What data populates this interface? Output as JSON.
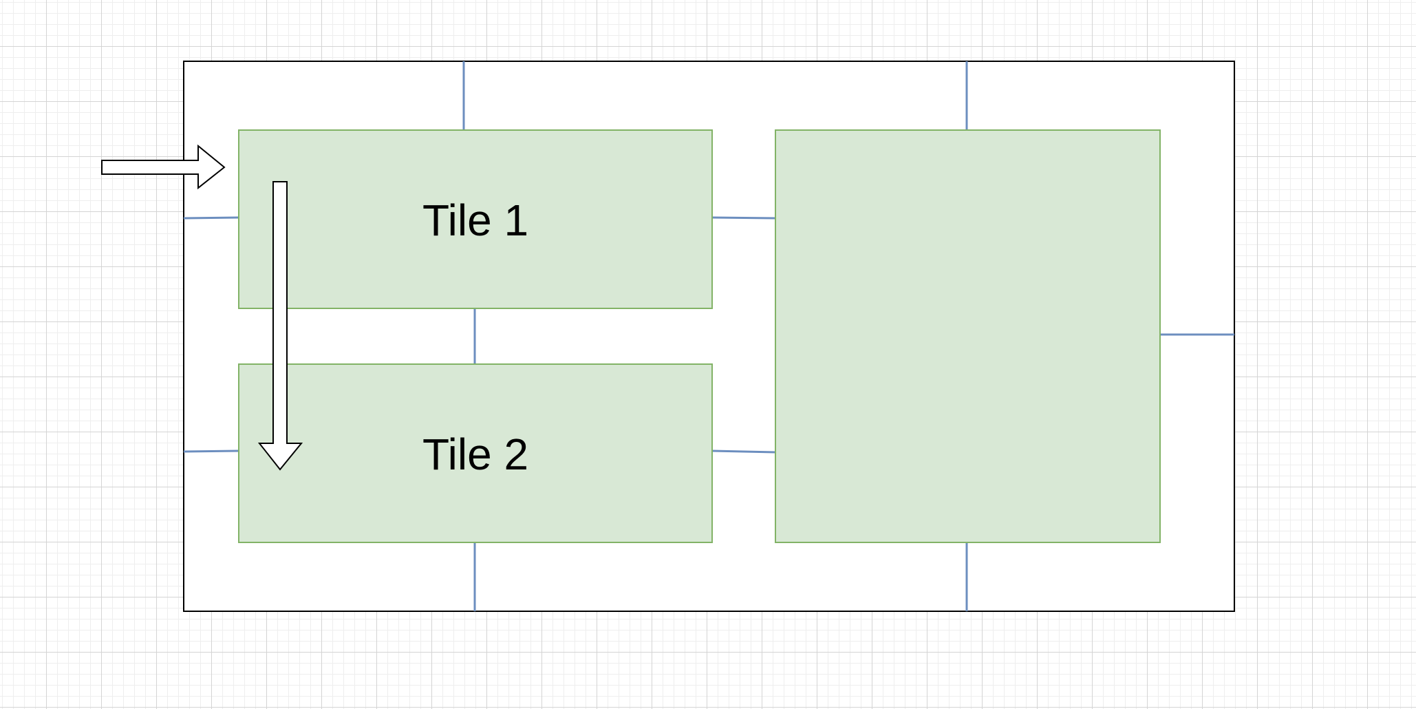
{
  "diagram": {
    "colors": {
      "container_stroke": "#000000",
      "container_fill": "#ffffff",
      "tile_fill": "#d8e8d5",
      "tile_stroke": "#82b366",
      "connector": "#6c8ebf",
      "arrow_fill": "#ffffff",
      "arrow_stroke": "#000000"
    },
    "tiles": [
      {
        "label": "Tile 1"
      },
      {
        "label": "Tile 2"
      },
      {
        "label": ""
      }
    ]
  }
}
